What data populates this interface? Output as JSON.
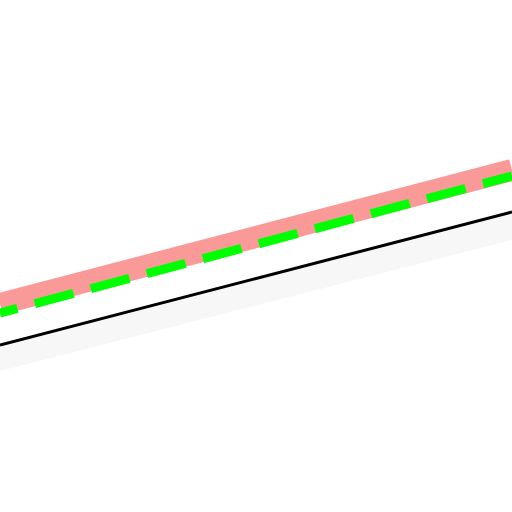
{
  "map": {
    "background_color": "#ffffff",
    "features": [
      {
        "kind": "road-shadow-band",
        "color": "#f7f7f7"
      },
      {
        "kind": "road-edge-line",
        "color": "#000000"
      },
      {
        "kind": "route-highlight-band",
        "color": "#f99a98"
      },
      {
        "kind": "route-dashed-line",
        "color": "#00ff00"
      }
    ]
  }
}
